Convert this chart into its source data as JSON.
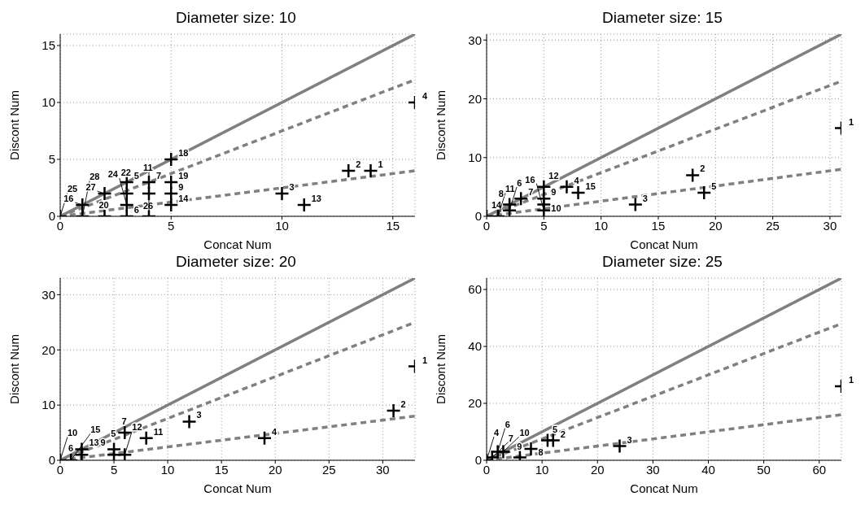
{
  "chart_data": [
    {
      "type": "scatter",
      "title": "Diameter size: 10",
      "xlabel": "Concat Num",
      "ylabel": "Discont Num",
      "xlim": [
        0,
        16
      ],
      "ylim": [
        0,
        16
      ],
      "xticks": [
        0,
        5,
        10,
        15
      ],
      "yticks": [
        0,
        5,
        10,
        15
      ],
      "grid": true,
      "series": [
        {
          "marker": "cross",
          "color": "#000000",
          "x": [
            0,
            1,
            1,
            2,
            2,
            3,
            3,
            3,
            3,
            4,
            4,
            4,
            5,
            5,
            5,
            5,
            10,
            11,
            13,
            14,
            16
          ],
          "values": [
            0,
            1,
            0,
            2,
            0,
            3,
            2,
            1,
            0,
            3,
            2,
            0,
            5,
            3,
            2,
            1,
            2,
            1,
            4,
            4,
            10
          ]
        },
        {
          "type": "line",
          "line_style": "solid",
          "color": "#808080",
          "x": [
            0,
            16
          ],
          "values": [
            0,
            16
          ]
        },
        {
          "type": "line",
          "line_style": "dashed",
          "color": "#808080",
          "x": [
            0,
            16
          ],
          "values": [
            0,
            12
          ]
        },
        {
          "type": "line",
          "line_style": "dashed",
          "color": "#808080",
          "x": [
            0,
            16
          ],
          "values": [
            0,
            4
          ]
        }
      ],
      "annotations": [
        {
          "text": "25",
          "x": 0,
          "y": 0
        },
        {
          "text": "16",
          "x": 1,
          "y": 1
        },
        {
          "text": "28",
          "x": 1,
          "y": 0
        },
        {
          "text": "27",
          "x": 2,
          "y": 2
        },
        {
          "text": "20",
          "x": 2,
          "y": 0
        },
        {
          "text": "5",
          "x": 3,
          "y": 3
        },
        {
          "text": "22",
          "x": 3,
          "y": 2
        },
        {
          "text": "24",
          "x": 3,
          "y": 1
        },
        {
          "text": "6",
          "x": 3,
          "y": 0
        },
        {
          "text": "7",
          "x": 4,
          "y": 3
        },
        {
          "text": "26",
          "x": 4,
          "y": 2
        },
        {
          "text": "11",
          "x": 4,
          "y": 0
        },
        {
          "text": "18",
          "x": 5,
          "y": 5
        },
        {
          "text": "19",
          "x": 5,
          "y": 3
        },
        {
          "text": "9",
          "x": 5,
          "y": 2
        },
        {
          "text": "14",
          "x": 5,
          "y": 1
        },
        {
          "text": "3",
          "x": 10,
          "y": 2
        },
        {
          "text": "13",
          "x": 11,
          "y": 1
        },
        {
          "text": "2",
          "x": 13,
          "y": 4
        },
        {
          "text": "1",
          "x": 14,
          "y": 4
        },
        {
          "text": "4",
          "x": 16,
          "y": 10
        }
      ]
    },
    {
      "type": "scatter",
      "title": "Diameter size: 15",
      "xlabel": "Concat Num",
      "ylabel": "Discont Num",
      "xlim": [
        0,
        31
      ],
      "ylim": [
        0,
        31
      ],
      "xticks": [
        0,
        5,
        10,
        15,
        20,
        25,
        30
      ],
      "yticks": [
        0,
        10,
        20,
        30
      ],
      "grid": true,
      "series": [
        {
          "marker": "cross",
          "color": "#000000",
          "x": [
            0,
            1,
            2,
            2,
            3,
            5,
            5,
            5,
            5,
            7,
            8,
            13,
            18,
            19,
            31
          ],
          "values": [
            0,
            0,
            1,
            2,
            3,
            5,
            3,
            2,
            1,
            5,
            4,
            2,
            7,
            4,
            15
          ]
        },
        {
          "type": "line",
          "line_style": "solid",
          "color": "#808080",
          "x": [
            0,
            31
          ],
          "values": [
            0,
            31
          ]
        },
        {
          "type": "line",
          "line_style": "dashed",
          "color": "#808080",
          "x": [
            0,
            31
          ],
          "values": [
            0,
            23
          ]
        },
        {
          "type": "line",
          "line_style": "dashed",
          "color": "#808080",
          "x": [
            0,
            31
          ],
          "values": [
            0,
            8
          ]
        }
      ],
      "annotations": [
        {
          "text": "14",
          "x": 0,
          "y": 0
        },
        {
          "text": "11",
          "x": 1,
          "y": 0
        },
        {
          "text": "6",
          "x": 2,
          "y": 1
        },
        {
          "text": "8",
          "x": 2,
          "y": 2
        },
        {
          "text": "7",
          "x": 3,
          "y": 3
        },
        {
          "text": "12",
          "x": 5,
          "y": 5
        },
        {
          "text": "9",
          "x": 5,
          "y": 3
        },
        {
          "text": "10",
          "x": 5,
          "y": 2
        },
        {
          "text": "16",
          "x": 5,
          "y": 1
        },
        {
          "text": "4",
          "x": 7,
          "y": 5
        },
        {
          "text": "15",
          "x": 8,
          "y": 4
        },
        {
          "text": "3",
          "x": 13,
          "y": 2
        },
        {
          "text": "2",
          "x": 18,
          "y": 7
        },
        {
          "text": "5",
          "x": 19,
          "y": 4
        },
        {
          "text": "1",
          "x": 31,
          "y": 15
        }
      ]
    },
    {
      "type": "scatter",
      "title": "Diameter size: 20",
      "xlabel": "Concat Num",
      "ylabel": "Discont Num",
      "xlim": [
        0,
        33
      ],
      "ylim": [
        0,
        33
      ],
      "xticks": [
        0,
        5,
        10,
        15,
        20,
        25,
        30
      ],
      "yticks": [
        0,
        10,
        20,
        30
      ],
      "grid": true,
      "series": [
        {
          "marker": "cross",
          "color": "#000000",
          "x": [
            0,
            1,
            2,
            2,
            5,
            5,
            6,
            6,
            8,
            12,
            19,
            31,
            33
          ],
          "values": [
            0,
            0,
            2,
            1,
            2,
            1,
            1,
            5,
            4,
            7,
            4,
            9,
            17
          ]
        },
        {
          "type": "line",
          "line_style": "solid",
          "color": "#808080",
          "x": [
            0,
            33
          ],
          "values": [
            0,
            33
          ]
        },
        {
          "type": "line",
          "line_style": "dashed",
          "color": "#808080",
          "x": [
            0,
            33
          ],
          "values": [
            0,
            25
          ]
        },
        {
          "type": "line",
          "line_style": "dashed",
          "color": "#808080",
          "x": [
            0,
            33
          ],
          "values": [
            0,
            8
          ]
        }
      ],
      "annotations": [
        {
          "text": "10",
          "x": 0,
          "y": 0
        },
        {
          "text": "15",
          "x": 1,
          "y": 0
        },
        {
          "text": "13",
          "x": 2,
          "y": 2
        },
        {
          "text": "6",
          "x": 2,
          "y": 1
        },
        {
          "text": "9",
          "x": 5,
          "y": 2
        },
        {
          "text": "5",
          "x": 5,
          "y": 1
        },
        {
          "text": "12",
          "x": 6,
          "y": 1
        },
        {
          "text": "7",
          "x": 6,
          "y": 5
        },
        {
          "text": "11",
          "x": 8,
          "y": 4
        },
        {
          "text": "3",
          "x": 12,
          "y": 7
        },
        {
          "text": "4",
          "x": 19,
          "y": 4
        },
        {
          "text": "2",
          "x": 31,
          "y": 9
        },
        {
          "text": "1",
          "x": 33,
          "y": 17
        }
      ]
    },
    {
      "type": "scatter",
      "title": "Diameter size: 25",
      "xlabel": "Concat Num",
      "ylabel": "Discont Num",
      "xlim": [
        0,
        64
      ],
      "ylim": [
        0,
        64
      ],
      "xticks": [
        0,
        10,
        20,
        30,
        40,
        50,
        60
      ],
      "yticks": [
        0,
        20,
        40,
        60
      ],
      "grid": true,
      "series": [
        {
          "marker": "cross",
          "color": "#000000",
          "x": [
            0,
            1,
            2,
            3,
            6,
            8,
            11,
            12,
            24,
            64
          ],
          "values": [
            0,
            1,
            3,
            3,
            1,
            4,
            7,
            7,
            5,
            26
          ]
        },
        {
          "type": "line",
          "line_style": "solid",
          "color": "#808080",
          "x": [
            0,
            64
          ],
          "values": [
            0,
            64
          ]
        },
        {
          "type": "line",
          "line_style": "dashed",
          "color": "#808080",
          "x": [
            0,
            64
          ],
          "values": [
            0,
            48
          ]
        },
        {
          "type": "line",
          "line_style": "dashed",
          "color": "#808080",
          "x": [
            0,
            64
          ],
          "values": [
            0,
            16
          ]
        }
      ],
      "annotations": [
        {
          "text": "4",
          "x": 0,
          "y": 0
        },
        {
          "text": "7",
          "x": 1,
          "y": 1
        },
        {
          "text": "6",
          "x": 2,
          "y": 3
        },
        {
          "text": "10",
          "x": 3,
          "y": 3
        },
        {
          "text": "9",
          "x": 6,
          "y": 1
        },
        {
          "text": "8",
          "x": 8,
          "y": 4
        },
        {
          "text": "5",
          "x": 11,
          "y": 7
        },
        {
          "text": "2",
          "x": 12,
          "y": 7
        },
        {
          "text": "3",
          "x": 24,
          "y": 5
        },
        {
          "text": "1",
          "x": 64,
          "y": 26
        }
      ]
    }
  ]
}
